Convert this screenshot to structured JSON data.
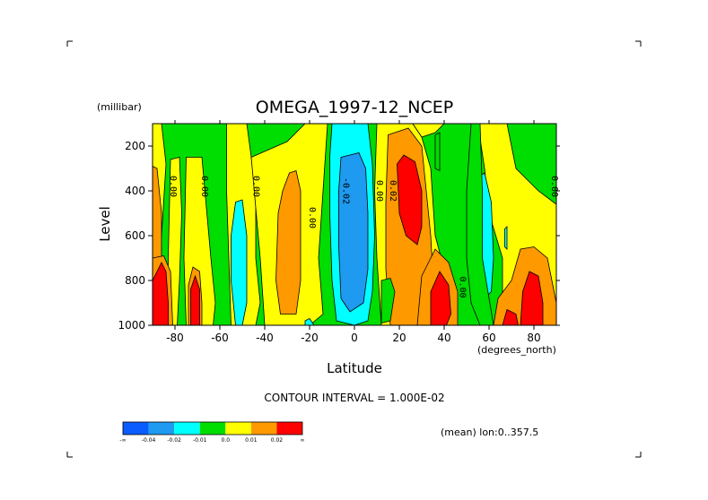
{
  "chart_data": {
    "type": "heatmap",
    "title": "OMEGA_1997-12_NCEP",
    "xlabel": "Latitude",
    "x_unit": "(degrees_north)",
    "ylabel": "Level",
    "y_unit": "(millibar)",
    "xlim": [
      -90,
      90
    ],
    "ylim": [
      1000,
      100
    ],
    "x_ticks": [
      "-80",
      "-60",
      "-40",
      "-20",
      "0",
      "20",
      "40",
      "60",
      "80"
    ],
    "x_tick_values": [
      -80,
      -60,
      -40,
      -20,
      0,
      20,
      40,
      60,
      80
    ],
    "y_ticks": [
      "200",
      "400",
      "600",
      "800",
      "1000"
    ],
    "y_tick_values": [
      200,
      400,
      600,
      800,
      1000
    ],
    "contour_interval_text": "CONTOUR INTERVAL = 1.000E-02",
    "mean_text": "(mean) lon:0..357.5",
    "contour_labels": [
      {
        "text": "0.00",
        "x": -82,
        "y": 380
      },
      {
        "text": "0.00",
        "x": -68,
        "y": 380
      },
      {
        "text": "0.00",
        "x": -45,
        "y": 380
      },
      {
        "text": "0.00",
        "x": -20,
        "y": 520
      },
      {
        "text": "-0.02",
        "x": -5,
        "y": 400
      },
      {
        "text": "0.00",
        "x": 10,
        "y": 400
      },
      {
        "text": "0.02",
        "x": 16,
        "y": 400
      },
      {
        "text": "0.00",
        "x": 47,
        "y": 830
      },
      {
        "text": "0.00",
        "x": 88,
        "y": 380
      }
    ],
    "legend": {
      "labels": [
        "-∞",
        "-0.04",
        "-0.02",
        "-0.01",
        "0.0",
        "0.01",
        "0.02",
        "∞"
      ],
      "colors": [
        "#0a5cff",
        "#1e9af0",
        "#00ffff",
        "#00dd00",
        "#ffff00",
        "#ff9900",
        "#ff0000"
      ]
    },
    "regions": [
      {
        "color": "#00dd00",
        "pts": [
          [
            -90,
            100
          ],
          [
            90,
            100
          ],
          [
            90,
            1000
          ],
          [
            -90,
            1000
          ]
        ]
      },
      {
        "color": "#ffff00",
        "pts": [
          [
            -90,
            100
          ],
          [
            -86,
            100
          ],
          [
            -84,
            280
          ],
          [
            -86,
            600
          ],
          [
            -88,
            800
          ],
          [
            -90,
            1000
          ]
        ]
      },
      {
        "color": "#ffff00",
        "pts": [
          [
            -82,
            260
          ],
          [
            -78,
            250
          ],
          [
            -77,
            500
          ],
          [
            -78,
            800
          ],
          [
            -79,
            1000
          ],
          [
            -83,
            1000
          ],
          [
            -83,
            700
          ]
        ]
      },
      {
        "color": "#ffff00",
        "pts": [
          [
            -75,
            250
          ],
          [
            -68,
            250
          ],
          [
            -64,
            700
          ],
          [
            -62,
            900
          ],
          [
            -63,
            1000
          ],
          [
            -75,
            1000
          ],
          [
            -76,
            700
          ]
        ]
      },
      {
        "color": "#ffff00",
        "pts": [
          [
            -57,
            100
          ],
          [
            -48,
            100
          ],
          [
            -46,
            250
          ],
          [
            -44,
            400
          ],
          [
            -44,
            700
          ],
          [
            -42,
            900
          ],
          [
            -44,
            1000
          ],
          [
            -55,
            1000
          ],
          [
            -56,
            700
          ],
          [
            -57,
            400
          ]
        ]
      },
      {
        "color": "#ffff00",
        "pts": [
          [
            -46,
            250
          ],
          [
            -30,
            180
          ],
          [
            -22,
            100
          ],
          [
            -12,
            100
          ],
          [
            -14,
            400
          ],
          [
            -16,
            700
          ],
          [
            -14,
            950
          ],
          [
            -20,
            1000
          ],
          [
            -40,
            1000
          ],
          [
            -42,
            700
          ]
        ]
      },
      {
        "color": "#00ffff",
        "pts": [
          [
            -53,
            450
          ],
          [
            -50,
            440
          ],
          [
            -48,
            600
          ],
          [
            -48,
            900
          ],
          [
            -50,
            1000
          ],
          [
            -53,
            1000
          ],
          [
            -55,
            800
          ],
          [
            -55,
            600
          ]
        ]
      },
      {
        "color": "#ff9900",
        "pts": [
          [
            -90,
            290
          ],
          [
            -88,
            300
          ],
          [
            -86,
            500
          ],
          [
            -86,
            800
          ],
          [
            -90,
            800
          ]
        ]
      },
      {
        "color": "#ff9900",
        "pts": [
          [
            -29,
            320
          ],
          [
            -26,
            310
          ],
          [
            -24,
            400
          ],
          [
            -24,
            800
          ],
          [
            -26,
            950
          ],
          [
            -33,
            950
          ],
          [
            -35,
            800
          ],
          [
            -34,
            500
          ],
          [
            -32,
            400
          ]
        ]
      },
      {
        "color": "#ffff00",
        "pts": [
          [
            10,
            100
          ],
          [
            26,
            100
          ],
          [
            30,
            160
          ],
          [
            34,
            300
          ],
          [
            36,
            600
          ],
          [
            40,
            750
          ],
          [
            44,
            900
          ],
          [
            42,
            1000
          ],
          [
            12,
            1000
          ],
          [
            10,
            700
          ],
          [
            9,
            400
          ]
        ]
      },
      {
        "color": "#ff9900",
        "pts": [
          [
            15,
            150
          ],
          [
            24,
            120
          ],
          [
            30,
            200
          ],
          [
            32,
            400
          ],
          [
            34,
            600
          ],
          [
            35,
            780
          ],
          [
            34,
            900
          ],
          [
            28,
            1000
          ],
          [
            16,
            1000
          ],
          [
            14,
            750
          ],
          [
            14,
            450
          ]
        ]
      },
      {
        "color": "#ff0000",
        "pts": [
          [
            19,
            280
          ],
          [
            22,
            240
          ],
          [
            27,
            270
          ],
          [
            30,
            400
          ],
          [
            30,
            560
          ],
          [
            28,
            640
          ],
          [
            23,
            600
          ],
          [
            20,
            500
          ]
        ]
      },
      {
        "color": "#00dd00",
        "pts": [
          [
            12,
            800
          ],
          [
            16,
            790
          ],
          [
            18,
            850
          ],
          [
            16,
            980
          ],
          [
            12,
            990
          ]
        ]
      },
      {
        "color": "#00ffff",
        "pts": [
          [
            -10,
            100
          ],
          [
            6,
            100
          ],
          [
            8,
            280
          ],
          [
            9,
            600
          ],
          [
            8,
            850
          ],
          [
            6,
            980
          ],
          [
            0,
            1000
          ],
          [
            -8,
            980
          ],
          [
            -10,
            800
          ],
          [
            -11,
            500
          ],
          [
            -11,
            250
          ]
        ]
      },
      {
        "color": "#1e9af0",
        "pts": [
          [
            -6,
            250
          ],
          [
            2,
            230
          ],
          [
            5,
            300
          ],
          [
            6,
            500
          ],
          [
            6,
            750
          ],
          [
            4,
            900
          ],
          [
            -2,
            940
          ],
          [
            -6,
            880
          ],
          [
            -7,
            650
          ],
          [
            -7,
            400
          ]
        ]
      },
      {
        "color": "#ffff00",
        "pts": [
          [
            55,
            100
          ],
          [
            68,
            100
          ],
          [
            72,
            300
          ],
          [
            82,
            400
          ],
          [
            90,
            460
          ],
          [
            90,
            1000
          ],
          [
            62,
            1000
          ],
          [
            66,
            900
          ],
          [
            66,
            700
          ],
          [
            60,
            500
          ],
          [
            58,
            300
          ]
        ]
      },
      {
        "color": "#00ffff",
        "pts": [
          [
            55,
            340
          ],
          [
            58,
            320
          ],
          [
            61,
            450
          ],
          [
            62,
            700
          ],
          [
            61,
            850
          ],
          [
            58,
            880
          ],
          [
            55,
            800
          ],
          [
            55,
            550
          ]
        ]
      },
      {
        "color": "#00ffff",
        "pts": [
          [
            67,
            570
          ],
          [
            68,
            560
          ],
          [
            68,
            660
          ],
          [
            67,
            650
          ]
        ]
      },
      {
        "color": "#00dd00",
        "pts": [
          [
            56,
            100
          ],
          [
            52,
            100
          ],
          [
            50,
            400
          ],
          [
            50,
            700
          ],
          [
            52,
            900
          ],
          [
            56,
            1000
          ],
          [
            62,
            1000
          ],
          [
            57,
            700
          ],
          [
            57,
            400
          ]
        ]
      },
      {
        "color": "#ff9900",
        "pts": [
          [
            30,
            780
          ],
          [
            36,
            660
          ],
          [
            42,
            720
          ],
          [
            46,
            850
          ],
          [
            46,
            1000
          ],
          [
            28,
            1000
          ]
        ]
      },
      {
        "color": "#ff0000",
        "pts": [
          [
            34,
            850
          ],
          [
            38,
            760
          ],
          [
            42,
            820
          ],
          [
            43,
            950
          ],
          [
            41,
            1000
          ],
          [
            34,
            1000
          ]
        ]
      },
      {
        "color": "#ff9900",
        "pts": [
          [
            62,
            1000
          ],
          [
            64,
            880
          ],
          [
            70,
            800
          ],
          [
            74,
            660
          ],
          [
            80,
            650
          ],
          [
            86,
            700
          ],
          [
            88,
            800
          ],
          [
            90,
            900
          ],
          [
            90,
            1000
          ]
        ]
      },
      {
        "color": "#ff0000",
        "pts": [
          [
            74,
            1000
          ],
          [
            75,
            850
          ],
          [
            78,
            760
          ],
          [
            82,
            780
          ],
          [
            84,
            900
          ],
          [
            84,
            1000
          ]
        ]
      },
      {
        "color": "#ff0000",
        "pts": [
          [
            66,
            1000
          ],
          [
            68,
            930
          ],
          [
            72,
            950
          ],
          [
            73,
            1000
          ]
        ]
      },
      {
        "color": "#ff9900",
        "pts": [
          [
            -90,
            700
          ],
          [
            -85,
            690
          ],
          [
            -82,
            760
          ],
          [
            -81,
            1000
          ],
          [
            -90,
            1000
          ]
        ]
      },
      {
        "color": "#ff0000",
        "pts": [
          [
            -90,
            800
          ],
          [
            -86,
            720
          ],
          [
            -84,
            760
          ],
          [
            -83,
            900
          ],
          [
            -83,
            1000
          ],
          [
            -90,
            1000
          ]
        ]
      },
      {
        "color": "#ff9900",
        "pts": [
          [
            -74,
            1000
          ],
          [
            -74,
            820
          ],
          [
            -72,
            740
          ],
          [
            -69,
            760
          ],
          [
            -68,
            900
          ],
          [
            -68,
            1000
          ]
        ]
      },
      {
        "color": "#ff0000",
        "pts": [
          [
            -73,
            1000
          ],
          [
            -73,
            840
          ],
          [
            -71,
            780
          ],
          [
            -69,
            840
          ],
          [
            -69,
            1000
          ]
        ]
      },
      {
        "color": "#ffff00",
        "pts": [
          [
            26,
            100
          ],
          [
            40,
            100
          ],
          [
            36,
            140
          ],
          [
            30,
            160
          ]
        ]
      },
      {
        "color": "#00dd00",
        "pts": [
          [
            36,
            150
          ],
          [
            38,
            140
          ],
          [
            38,
            310
          ],
          [
            36,
            300
          ]
        ]
      },
      {
        "color": "#00ffff",
        "pts": [
          [
            -22,
            980
          ],
          [
            -20,
            970
          ],
          [
            -18,
            1000
          ],
          [
            -22,
            1000
          ]
        ]
      }
    ]
  }
}
